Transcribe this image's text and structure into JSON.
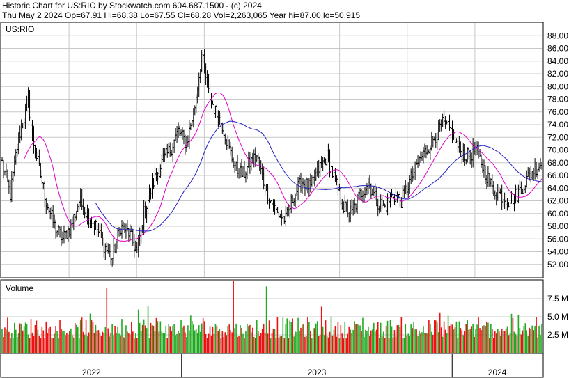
{
  "header": {
    "line1": "Historic Chart for US:RIO by Stockwatch.com 604.687.1500 - (c) 2024",
    "line2": "Thu May  2 2024   Op=67.91   Hi=68.38   Lo=67.55   Cl=68.28   Vol=2,263,065   Year hi=87.00   lo=50.915"
  },
  "price_panel": {
    "symbol": "US:RIO"
  },
  "volume_panel": {
    "title": "Volume"
  },
  "colors": {
    "bar": "#000000",
    "ma_short": "#e000c8",
    "ma_long": "#2020c0",
    "vol_up": "#22aa22",
    "vol_down": "#ee1111",
    "grid": "#c8c8c8"
  },
  "chart_data": [
    {
      "type": "ohlc",
      "title": "US:RIO",
      "ylim": [
        50,
        90
      ],
      "y_ticks": [
        "52.00",
        "54.00",
        "56.00",
        "58.00",
        "60.00",
        "62.00",
        "64.00",
        "66.00",
        "68.00",
        "70.00",
        "72.00",
        "74.00",
        "76.00",
        "78.00",
        "80.00",
        "82.00",
        "84.00",
        "86.00",
        "88.00"
      ],
      "x_labels": [
        "2022",
        "2023",
        "2024"
      ],
      "x_label_positions": [
        0.0,
        0.333,
        0.833
      ],
      "anchors": [
        [
          0,
          68
        ],
        [
          6,
          63
        ],
        [
          12,
          72
        ],
        [
          16,
          75
        ],
        [
          19,
          78
        ],
        [
          22,
          72
        ],
        [
          26,
          68
        ],
        [
          32,
          62
        ],
        [
          38,
          58
        ],
        [
          44,
          56
        ],
        [
          50,
          58
        ],
        [
          56,
          62
        ],
        [
          62,
          60
        ],
        [
          68,
          58
        ],
        [
          74,
          55
        ],
        [
          80,
          53
        ],
        [
          86,
          58
        ],
        [
          92,
          57
        ],
        [
          98,
          54
        ],
        [
          103,
          60
        ],
        [
          110,
          65
        ],
        [
          116,
          68
        ],
        [
          122,
          70
        ],
        [
          128,
          73
        ],
        [
          134,
          71
        ],
        [
          140,
          77
        ],
        [
          145,
          85
        ],
        [
          150,
          79
        ],
        [
          155,
          76
        ],
        [
          160,
          74
        ],
        [
          165,
          70
        ],
        [
          170,
          67
        ],
        [
          175,
          66
        ],
        [
          180,
          68
        ],
        [
          185,
          69
        ],
        [
          190,
          65
        ],
        [
          195,
          62
        ],
        [
          200,
          60
        ],
        [
          206,
          59
        ],
        [
          212,
          63
        ],
        [
          218,
          65
        ],
        [
          224,
          64
        ],
        [
          230,
          67
        ],
        [
          236,
          69
        ],
        [
          242,
          65
        ],
        [
          248,
          61
        ],
        [
          254,
          60
        ],
        [
          260,
          63
        ],
        [
          266,
          65
        ],
        [
          272,
          62
        ],
        [
          278,
          61
        ],
        [
          284,
          63
        ],
        [
          290,
          62
        ],
        [
          296,
          65
        ],
        [
          302,
          68
        ],
        [
          308,
          70
        ],
        [
          314,
          72
        ],
        [
          320,
          74
        ],
        [
          326,
          73
        ],
        [
          332,
          70
        ],
        [
          338,
          69
        ],
        [
          344,
          70
        ],
        [
          350,
          67
        ],
        [
          356,
          64
        ],
        [
          362,
          63
        ],
        [
          368,
          62
        ],
        [
          374,
          63
        ],
        [
          380,
          65
        ],
        [
          386,
          67
        ],
        [
          392,
          68
        ]
      ],
      "n_bars": 393,
      "ma_short_period": 20,
      "ma_long_period": 50,
      "ma_start_index": 68
    },
    {
      "type": "bar",
      "title": "Volume",
      "ylim": [
        0,
        10
      ],
      "y_ticks": [
        "2.5 M",
        "5.0 M",
        "7.5 M"
      ],
      "spikes": [
        [
          76,
          9.0
        ],
        [
          168,
          10.0
        ],
        [
          192,
          9.2
        ],
        [
          99,
          6.0
        ],
        [
          106,
          6.5
        ],
        [
          232,
          6.4
        ],
        [
          318,
          5.6
        ],
        [
          370,
          5.4
        ]
      ],
      "base_range": [
        2.0,
        5.5
      ]
    }
  ]
}
